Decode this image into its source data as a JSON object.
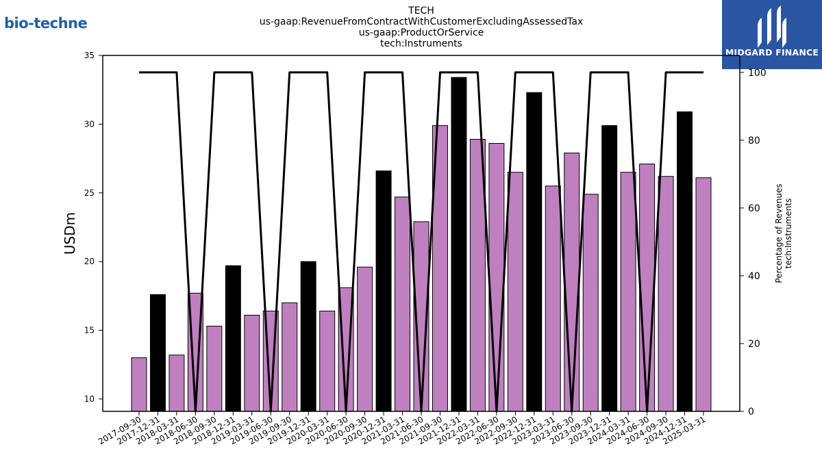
{
  "logos": {
    "left_text": "bio-techne",
    "right_text": "MIDGARD FINANCE"
  },
  "chart_data": {
    "type": "bar",
    "title_lines": [
      "TECH",
      "us-gaap:RevenueFromContractWithCustomerExcludingAssessedTax",
      "us-gaap:ProductOrService",
      "tech:Instruments"
    ],
    "xlabel": "",
    "ylabel": "USDm",
    "ylabel_right_lines": [
      "Percentage of Revenues",
      "tech:Instruments"
    ],
    "ylim": [
      9.1,
      35
    ],
    "yticks": [
      10,
      15,
      20,
      25,
      30,
      35
    ],
    "ylim_right": [
      0,
      105
    ],
    "yticks_right": [
      0,
      20,
      40,
      60,
      80,
      100
    ],
    "grid": false,
    "categories": [
      "2017-09-30",
      "2017-12-31",
      "2018-03-31",
      "2018-06-30",
      "2018-09-30",
      "2018-12-31",
      "2019-03-31",
      "2019-06-30",
      "2019-09-30",
      "2019-12-31",
      "2020-03-31",
      "2020-06-30",
      "2020-09-30",
      "2020-12-31",
      "2021-03-31",
      "2021-06-30",
      "2021-09-30",
      "2021-12-31",
      "2022-03-31",
      "2022-06-30",
      "2022-09-30",
      "2022-12-31",
      "2023-03-31",
      "2023-06-30",
      "2023-09-30",
      "2023-12-31",
      "2024-03-31",
      "2024-06-30",
      "2024-09-30",
      "2024-12-31",
      "2025-03-31"
    ],
    "values": [
      13.0,
      17.6,
      13.2,
      17.7,
      15.3,
      19.7,
      16.1,
      16.4,
      17.0,
      20.0,
      16.4,
      18.1,
      19.6,
      26.6,
      24.7,
      22.9,
      29.9,
      33.4,
      28.9,
      28.6,
      26.5,
      32.3,
      25.5,
      27.9,
      24.9,
      29.9,
      26.5,
      27.1,
      26.2,
      30.9,
      26.1
    ],
    "bar_colors": [
      "#bf80bf",
      "#000000",
      "#bf80bf",
      "#bf80bf",
      "#bf80bf",
      "#000000",
      "#bf80bf",
      "#bf80bf",
      "#bf80bf",
      "#000000",
      "#bf80bf",
      "#bf80bf",
      "#bf80bf",
      "#000000",
      "#bf80bf",
      "#bf80bf",
      "#bf80bf",
      "#000000",
      "#bf80bf",
      "#bf80bf",
      "#bf80bf",
      "#000000",
      "#bf80bf",
      "#bf80bf",
      "#bf80bf",
      "#000000",
      "#bf80bf",
      "#bf80bf",
      "#bf80bf",
      "#000000",
      "#bf80bf"
    ],
    "line_series": {
      "values": [
        100,
        100,
        100,
        0,
        100,
        100,
        100,
        0,
        100,
        100,
        100,
        0,
        100,
        100,
        100,
        0,
        100,
        100,
        100,
        0,
        100,
        100,
        100,
        0,
        100,
        100,
        100,
        0,
        100,
        100,
        100
      ],
      "color": "#000000"
    }
  }
}
